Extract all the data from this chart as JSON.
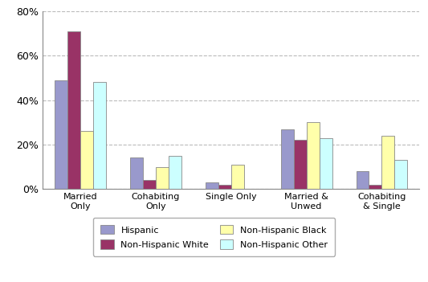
{
  "categories": [
    "Married\nOnly",
    "Cohabiting\nOnly",
    "Single Only",
    "Married &\nUnwed",
    "Cohabiting\n& Single"
  ],
  "series": {
    "Hispanic": [
      0.49,
      0.14,
      0.03,
      0.27,
      0.08
    ],
    "Non-Hispanic White": [
      0.71,
      0.04,
      0.02,
      0.22,
      0.02
    ],
    "Non-Hispanic Black": [
      0.26,
      0.1,
      0.11,
      0.3,
      0.24
    ],
    "Non-Hispanic Other": [
      0.48,
      0.15,
      0.0,
      0.23,
      0.13
    ]
  },
  "colors": {
    "Hispanic": "#9999CC",
    "Non-Hispanic White": "#993366",
    "Non-Hispanic Black": "#FFFFAA",
    "Non-Hispanic Other": "#CCFFFF"
  },
  "ylim": [
    0,
    0.8
  ],
  "yticks": [
    0,
    0.2,
    0.4,
    0.6,
    0.8
  ],
  "yticklabels": [
    "0%",
    "20%",
    "40%",
    "60%",
    "80%"
  ],
  "legend_order": [
    "Hispanic",
    "Non-Hispanic White",
    "Non-Hispanic Black",
    "Non-Hispanic Other"
  ],
  "bar_edge_color": "#888888",
  "grid_color": "#BBBBBB",
  "background_color": "#FFFFFF"
}
